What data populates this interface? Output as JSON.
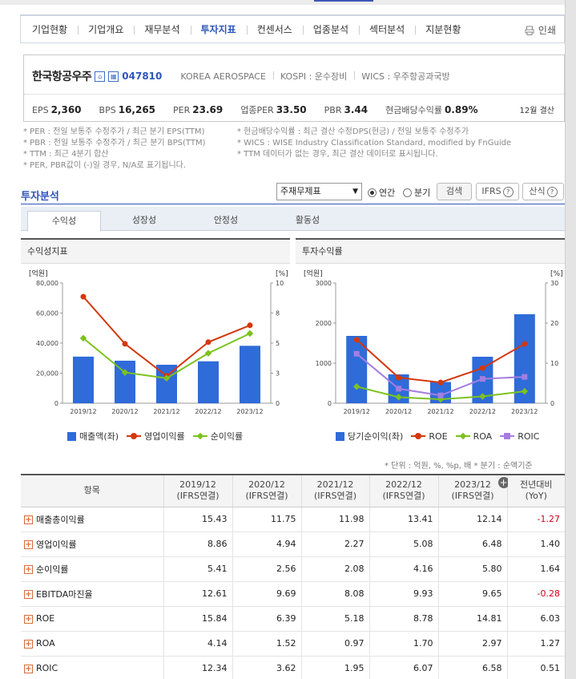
{
  "nav": {
    "items": [
      "기업현황",
      "기업개요",
      "재무분석",
      "투자지표",
      "컨센서스",
      "업종분석",
      "섹터분석",
      "지분현황"
    ],
    "active_index": 3,
    "print_label": "인쇄"
  },
  "company": {
    "name": "한국항공우주",
    "code": "047810",
    "name_en": "KOREA AEROSPACE",
    "kospi": "KOSPI : 운수장비",
    "wics": "WICS : 우주항공과국방",
    "metrics": [
      {
        "k": "EPS",
        "v": "2,360"
      },
      {
        "k": "BPS",
        "v": "16,265"
      },
      {
        "k": "PER",
        "v": "23.69"
      },
      {
        "k": "업종PER",
        "v": "33.50"
      },
      {
        "k": "PBR",
        "v": "3.44"
      },
      {
        "k": "현금배당수익률",
        "v": "0.89%"
      }
    ],
    "settle": "12월 결산"
  },
  "notes": {
    "left": [
      "* PER : 전일 보통주 수정주가 / 최근 분기 EPS(TTM)",
      "* PBR : 전일 보통주 수정주가 / 최근 분기 BPS(TTM)",
      "* TTM : 최근 4분기 합산",
      "* PER, PBR값이 (-)일 경우, N/A로 표기됩니다."
    ],
    "right": [
      "* 현금배당수익률 : 최근 결산 수정DPS(현금) / 전일 보통주 수정주가",
      "* WICS : WISE Industry Classification Standard, modified by FnGuide",
      "* TTM 데이터가 없는 경우, 최근 결산 데이터로 표시됩니다."
    ]
  },
  "analysis": {
    "title": "투자분석",
    "select_value": "주재무제표",
    "radio_annual": "연간",
    "radio_quarter": "분기",
    "search_label": "검색",
    "ifrs_label": "IFRS",
    "formula_label": "산식",
    "tabs": [
      "수익성",
      "성장성",
      "안정성",
      "활동성"
    ],
    "active_tab": 0
  },
  "charts": {
    "left_title": "수익성지표",
    "right_title": "투자수익률",
    "left_legend": [
      "매출액(좌)",
      "영업이익률",
      "순이익률"
    ],
    "right_legend": [
      "당기순이익(좌)",
      "ROE",
      "ROA",
      "ROIC"
    ]
  },
  "chart_data": [
    {
      "type": "bar",
      "title": "수익성지표",
      "categories": [
        "2019/12",
        "2020/12",
        "2021/12",
        "2022/12",
        "2023/12"
      ],
      "left_unit": "[억원]",
      "right_unit": "[%]",
      "ylim_left": [
        0,
        80000
      ],
      "yticks_left": [
        "80,000",
        "60,000",
        "40,000",
        "20,000",
        "0"
      ],
      "ylim_right": [
        0,
        10
      ],
      "yticks_right": [
        "10",
        "8",
        "5",
        "3",
        "0"
      ],
      "series": [
        {
          "name": "매출액(좌)",
          "kind": "bar",
          "axis": "left",
          "color": "#2f6bd9",
          "values": [
            31000,
            28300,
            25600,
            27900,
            38200
          ]
        },
        {
          "name": "영업이익률",
          "kind": "line",
          "axis": "right",
          "color": "#d4380d",
          "marker": "circle",
          "values": [
            8.86,
            4.94,
            2.27,
            5.08,
            6.48
          ]
        },
        {
          "name": "순이익률",
          "kind": "line",
          "axis": "right",
          "color": "#7cc21e",
          "marker": "diamond",
          "values": [
            5.41,
            2.56,
            2.08,
            4.16,
            5.8
          ]
        }
      ]
    },
    {
      "type": "bar",
      "title": "투자수익률",
      "categories": [
        "2019/12",
        "2020/12",
        "2021/12",
        "2022/12",
        "2023/12"
      ],
      "left_unit": "[억원]",
      "right_unit": "[%]",
      "ylim_left": [
        0,
        3000
      ],
      "yticks_left": [
        "3000",
        "2000",
        "1000",
        "0"
      ],
      "ylim_right": [
        0,
        30
      ],
      "yticks_right": [
        "30",
        "20",
        "10",
        "0"
      ],
      "series": [
        {
          "name": "당기순이익(좌)",
          "kind": "bar",
          "axis": "left",
          "color": "#2f6bd9",
          "values": [
            1680,
            720,
            530,
            1160,
            2220
          ]
        },
        {
          "name": "ROE",
          "kind": "line",
          "axis": "right",
          "color": "#d4380d",
          "marker": "circle",
          "values": [
            15.84,
            6.39,
            5.18,
            8.78,
            14.81
          ]
        },
        {
          "name": "ROA",
          "kind": "line",
          "axis": "right",
          "color": "#7cc21e",
          "marker": "diamond",
          "values": [
            4.14,
            1.52,
            0.97,
            1.7,
            2.97
          ]
        },
        {
          "name": "ROIC",
          "kind": "line",
          "axis": "right",
          "color": "#a57de0",
          "marker": "square",
          "values": [
            12.34,
            3.62,
            1.95,
            6.07,
            6.58
          ]
        }
      ]
    }
  ],
  "unit_note": "* 단위 : 억원, %, %p, 배     * 분기 : 순액기준",
  "table": {
    "headers": [
      {
        "l1": "항목",
        "l2": ""
      },
      {
        "l1": "2019/12",
        "l2": "(IFRS연결)"
      },
      {
        "l1": "2020/12",
        "l2": "(IFRS연결)"
      },
      {
        "l1": "2021/12",
        "l2": "(IFRS연결)"
      },
      {
        "l1": "2022/12",
        "l2": "(IFRS연결)"
      },
      {
        "l1": "2023/12",
        "l2": "(IFRS연결)"
      },
      {
        "l1": "전년대비",
        "l2": "(YoY)"
      }
    ],
    "rows": [
      {
        "label": "매출총이익률",
        "vals": [
          "15.43",
          "11.75",
          "11.98",
          "13.41",
          "12.14"
        ],
        "yoy": "-1.27"
      },
      {
        "label": "영업이익률",
        "vals": [
          "8.86",
          "4.94",
          "2.27",
          "5.08",
          "6.48"
        ],
        "yoy": "1.40"
      },
      {
        "label": "순이익률",
        "vals": [
          "5.41",
          "2.56",
          "2.08",
          "4.16",
          "5.80"
        ],
        "yoy": "1.64"
      },
      {
        "label": "EBITDA마진율",
        "vals": [
          "12.61",
          "9.69",
          "8.08",
          "9.93",
          "9.65"
        ],
        "yoy": "-0.28"
      },
      {
        "label": "ROE",
        "vals": [
          "15.84",
          "6.39",
          "5.18",
          "8.78",
          "14.81"
        ],
        "yoy": "6.03"
      },
      {
        "label": "ROA",
        "vals": [
          "4.14",
          "1.52",
          "0.97",
          "1.70",
          "2.97"
        ],
        "yoy": "1.27"
      },
      {
        "label": "ROIC",
        "vals": [
          "12.34",
          "3.62",
          "1.95",
          "6.07",
          "6.58"
        ],
        "yoy": "0.51"
      }
    ]
  }
}
